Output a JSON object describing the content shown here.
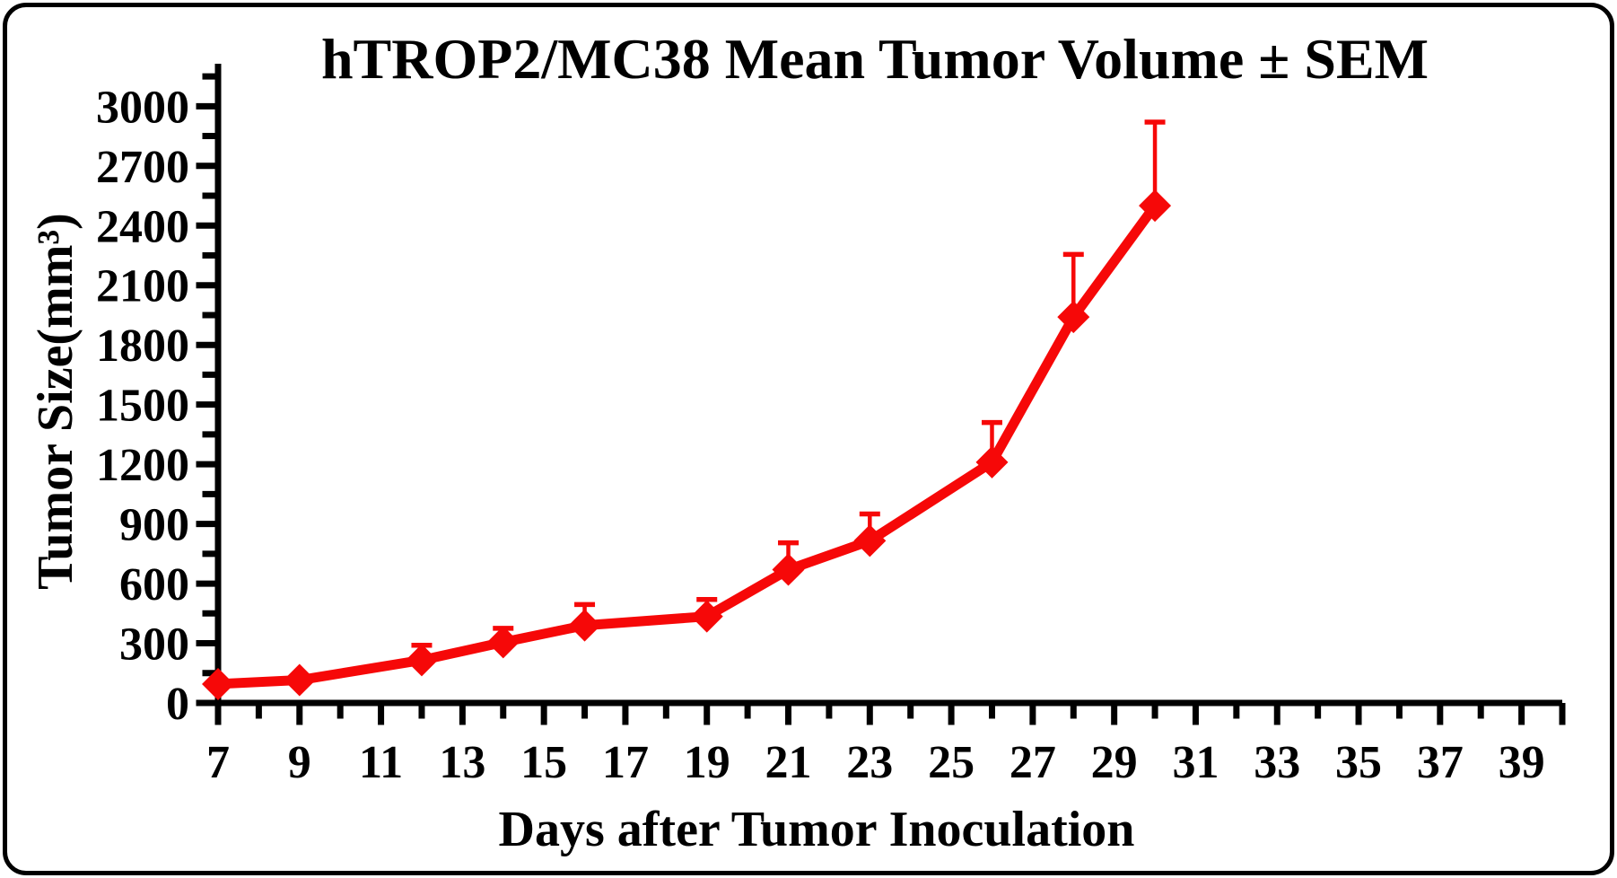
{
  "frame": {
    "border_color": "#000000",
    "background": "#ffffff"
  },
  "chart_data": {
    "type": "line",
    "title": "hTROP2/MC38 Mean Tumor Volume ± SEM",
    "xlabel": "Days after Tumor Inoculation",
    "ylabel": "Tumor Size(mm³)",
    "legend": "none",
    "grid": false,
    "error_bars": "upper SEM only, same color as series",
    "series": [
      {
        "name": "hTROP2/MC38 mean tumor volume",
        "color": "#f60808",
        "marker": "filled-diamond",
        "x": [
          7,
          9,
          12,
          14,
          16,
          19,
          21,
          23,
          26,
          28,
          30
        ],
        "y": [
          95,
          115,
          215,
          305,
          390,
          435,
          670,
          815,
          1210,
          1940,
          2500
        ],
        "sem_upper": [
          0,
          0,
          75,
          70,
          105,
          85,
          135,
          135,
          200,
          315,
          420
        ]
      }
    ],
    "x_axis": {
      "min": 7,
      "max": 40,
      "tick_step": 1,
      "labeled_ticks": [
        7,
        9,
        11,
        13,
        15,
        17,
        19,
        21,
        23,
        25,
        27,
        29,
        31,
        33,
        35,
        37,
        39
      ],
      "tick_direction": "out"
    },
    "y_axis": {
      "min": 0,
      "max": 3200,
      "minor_step": 150,
      "major_step": 300,
      "labeled_ticks": [
        0,
        300,
        600,
        900,
        1200,
        1500,
        1800,
        2100,
        2400,
        2700,
        3000
      ],
      "tick_direction": "out"
    }
  }
}
